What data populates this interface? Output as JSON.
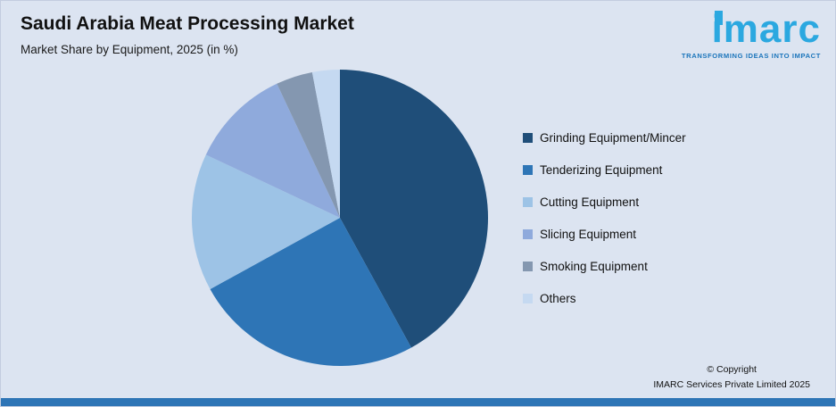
{
  "header": {
    "title": "Saudi Arabia Meat Processing Market",
    "subtitle": "Market Share by Equipment, 2025 (in %)"
  },
  "logo": {
    "wordmark": "imarc",
    "tagline": "TRANSFORMING IDEAS INTO IMPACT",
    "brand_blue": "#2BA8E0",
    "tagline_blue": "#1B75BB"
  },
  "chart_data": {
    "type": "pie",
    "title": "Saudi Arabia Meat Processing Market",
    "subtitle": "Market Share by Equipment, 2025 (in %)",
    "categories": [
      "Grinding Equipment/Mincer",
      "Tenderizing Equipment",
      "Cutting Equipment",
      "Slicing Equipment",
      "Smoking Equipment",
      "Others"
    ],
    "values": [
      42,
      25,
      15,
      11,
      4,
      3
    ],
    "colors": [
      "#1F4E79",
      "#2E75B6",
      "#9DC3E6",
      "#8FAADC",
      "#8497B0",
      "#C5D9F1"
    ],
    "legend_position": "right",
    "start_angle_deg": -90,
    "direction": "clockwise",
    "data_labels": false,
    "note": "values estimated from slice angles; no numeric labels shown in image"
  },
  "footer": {
    "copyright_line1": "© Copyright",
    "copyright_line2": "IMARC Services Private Limited 2025"
  },
  "colors": {
    "background": "#DCE4F1",
    "bottom_bar": "#2E75B6",
    "text": "#111111"
  }
}
